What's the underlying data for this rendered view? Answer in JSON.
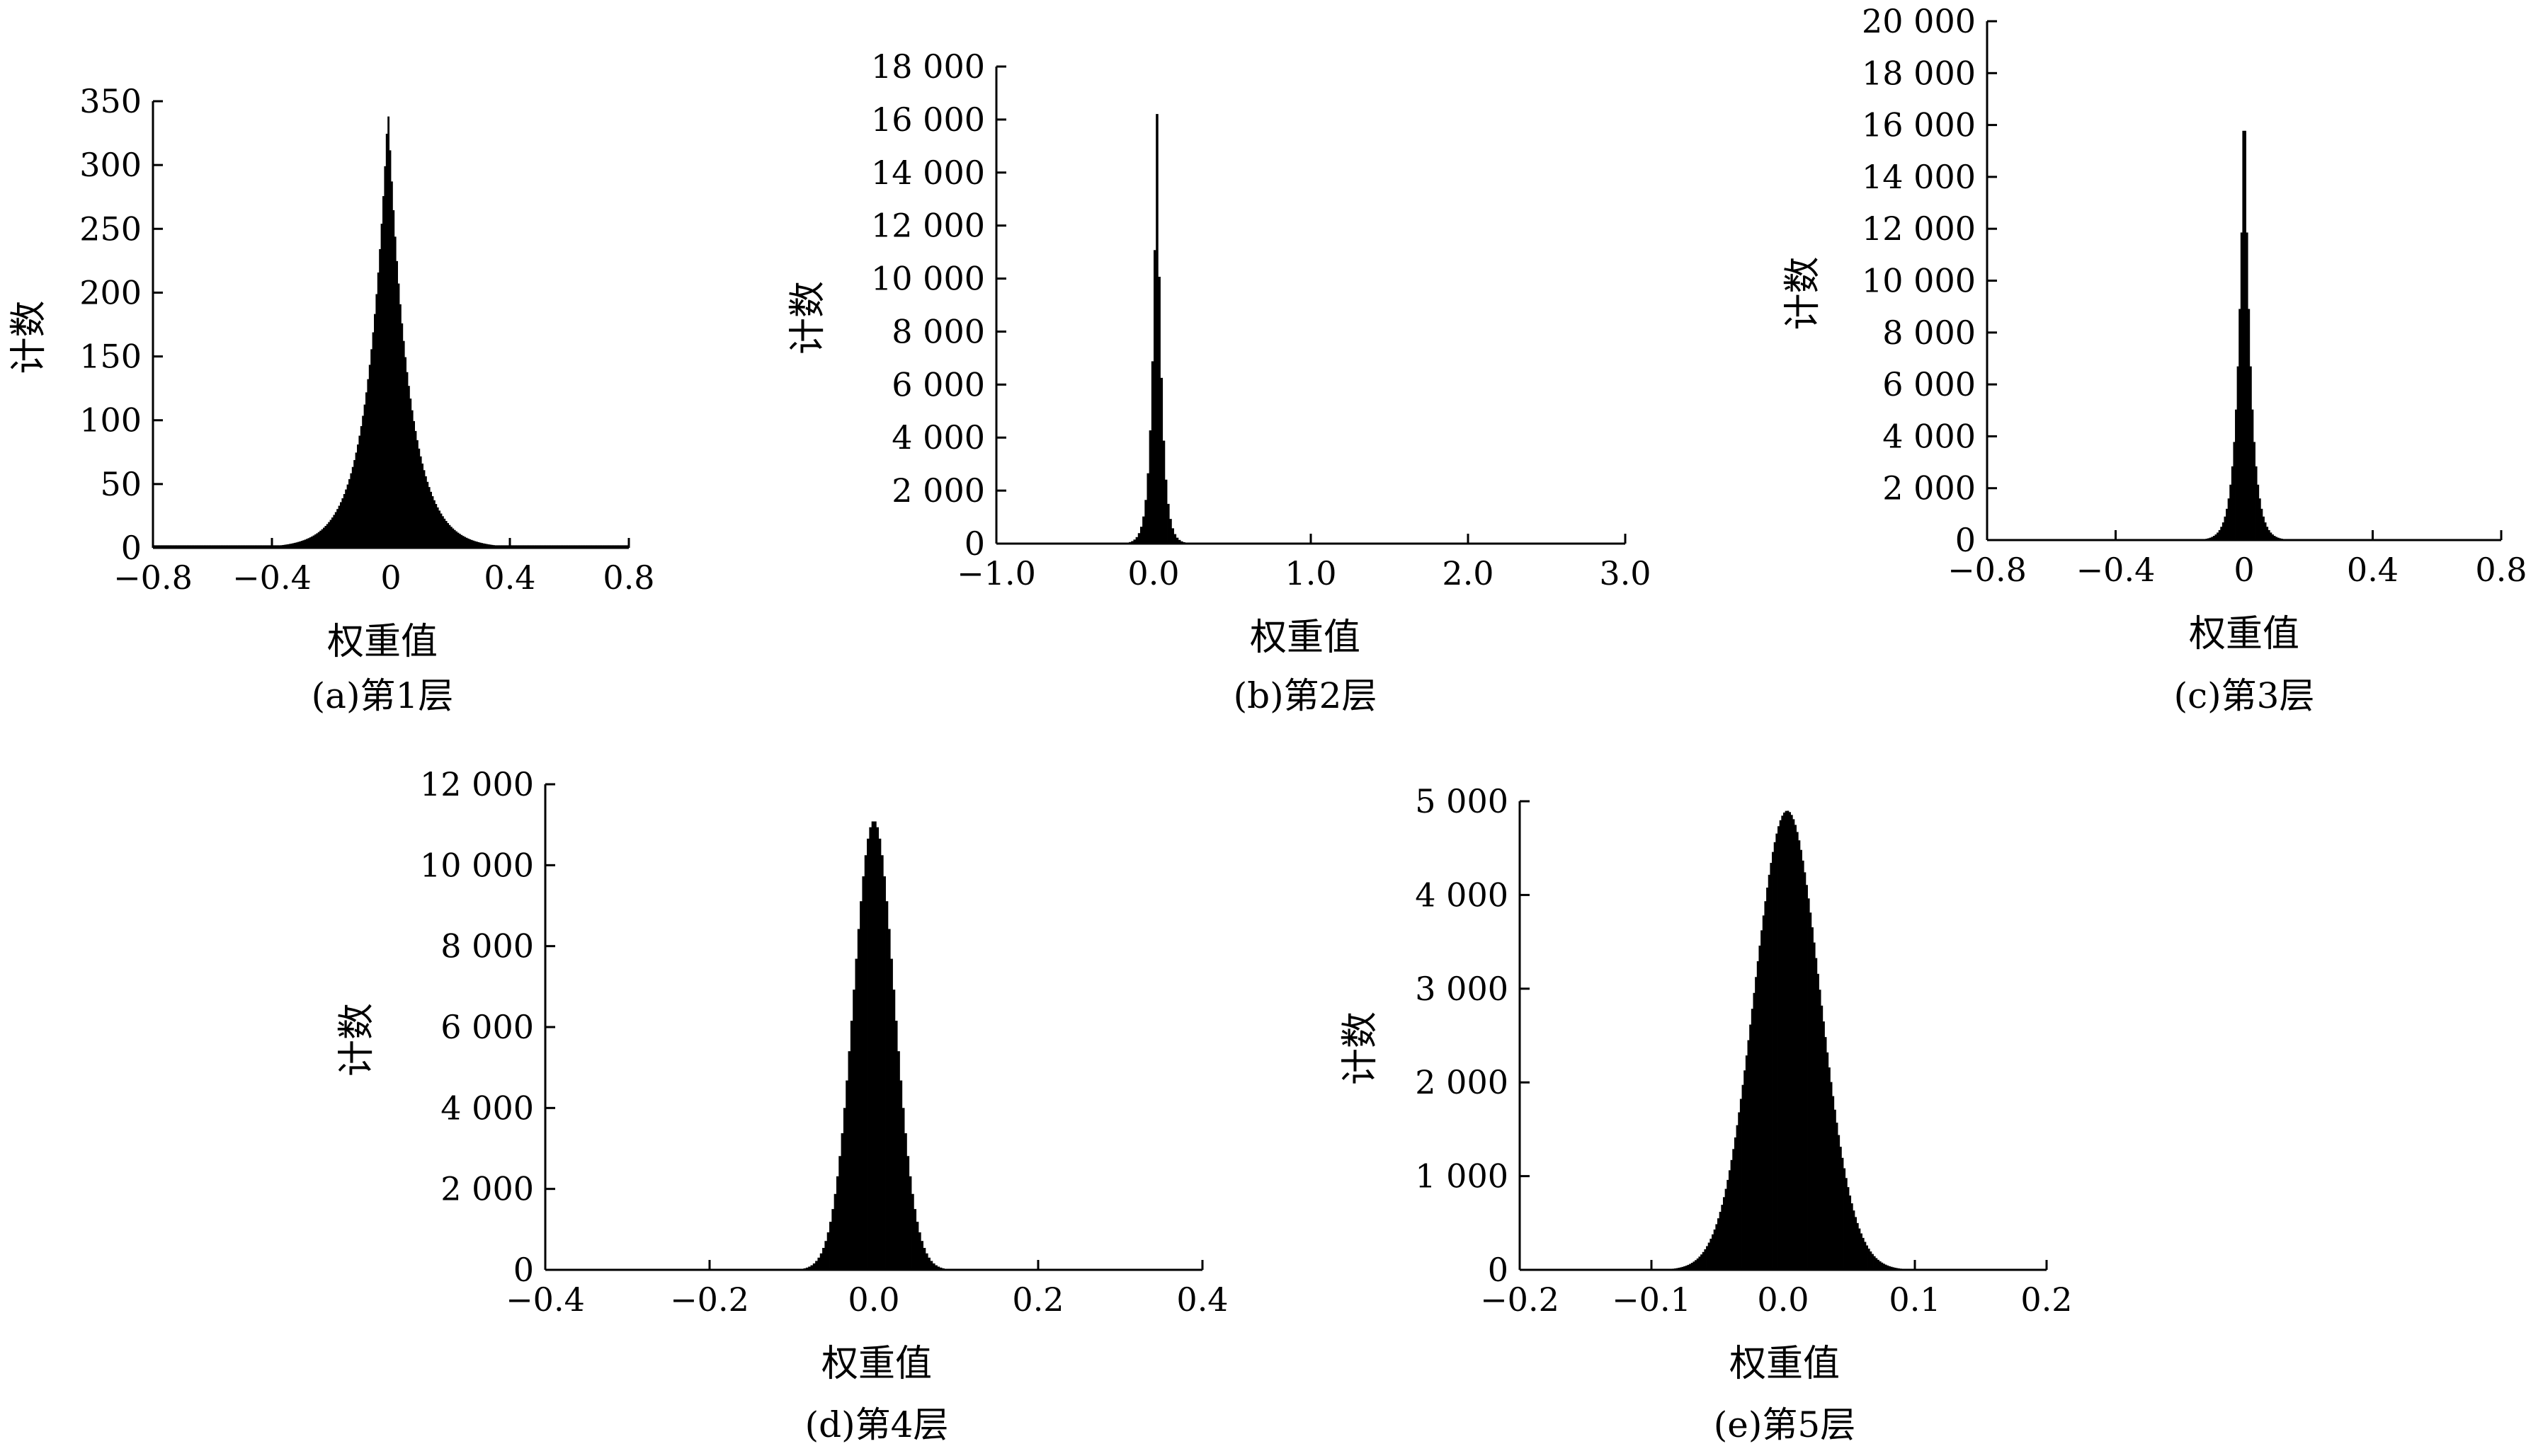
{
  "chart_data": [
    {
      "type": "bar",
      "subtype": "histogram",
      "caption": "(a)第1层",
      "xlabel": "权重值",
      "ylabel": "计数",
      "xlim": [
        -0.8,
        0.8
      ],
      "ylim": [
        0,
        350
      ],
      "xticks": [
        -0.8,
        -0.4,
        0,
        0.4,
        0.8
      ],
      "xtick_labels": [
        "−0.8",
        "−0.4",
        "0",
        "0.4",
        "0.8"
      ],
      "yticks": [
        0,
        50,
        100,
        150,
        200,
        250,
        300,
        350
      ],
      "ytick_labels": [
        "0",
        "50",
        "100",
        "150",
        "200",
        "250",
        "300",
        "350"
      ],
      "distribution": {
        "shape": "laplace",
        "center": -0.01,
        "peak": 345,
        "scale": 0.07,
        "tail_floor": 2
      }
    },
    {
      "type": "bar",
      "subtype": "histogram",
      "caption": "(b)第2层",
      "xlabel": "权重值",
      "ylabel": "计数",
      "xlim": [
        -1.0,
        3.0
      ],
      "ylim": [
        0,
        18000
      ],
      "xticks": [
        -1.0,
        0.0,
        1.0,
        2.0,
        3.0
      ],
      "xtick_labels": [
        "−1.0",
        "0.0",
        "1.0",
        "2.0",
        "3.0"
      ],
      "yticks": [
        0,
        2000,
        4000,
        6000,
        8000,
        10000,
        12000,
        14000,
        16000,
        18000
      ],
      "ytick_labels": [
        "0",
        "2 000",
        "4 000",
        "6 000",
        "8 000",
        "10 000",
        "12 000",
        "14 000",
        "16 000",
        "18 000"
      ],
      "distribution": {
        "shape": "laplace",
        "center": 0.02,
        "peak": 17000,
        "scale": 0.03,
        "tail_floor": 0
      }
    },
    {
      "type": "bar",
      "subtype": "histogram",
      "caption": "(c)第3层",
      "xlabel": "权重值",
      "ylabel": "计数",
      "xlim": [
        -0.8,
        0.8
      ],
      "ylim": [
        0,
        20000
      ],
      "xticks": [
        -0.8,
        -0.4,
        0,
        0.4,
        0.8
      ],
      "xtick_labels": [
        "−0.8",
        "−0.4",
        "0",
        "0.4",
        "0.8"
      ],
      "yticks": [
        0,
        2000,
        4000,
        6000,
        8000,
        10000,
        12000,
        14000,
        16000,
        18000,
        20000
      ],
      "ytick_labels": [
        "0",
        "2 000",
        "4 000",
        "6 000",
        "8 000",
        "10 000",
        "12 000",
        "14 000",
        "16 000",
        "18 000",
        "20 000"
      ],
      "distribution": {
        "shape": "laplace",
        "center": 0.0,
        "peak": 18200,
        "scale": 0.02,
        "tail_floor": 0
      }
    },
    {
      "type": "bar",
      "subtype": "histogram",
      "caption": "(d)第4层",
      "xlabel": "权重值",
      "ylabel": "计数",
      "xlim": [
        -0.4,
        0.4
      ],
      "ylim": [
        0,
        12000
      ],
      "xticks": [
        -0.4,
        -0.2,
        0.0,
        0.2,
        0.4
      ],
      "xtick_labels": [
        "−0.4",
        "−0.2",
        "0.0",
        "0.2",
        "0.4"
      ],
      "yticks": [
        0,
        2000,
        4000,
        6000,
        8000,
        10000,
        12000
      ],
      "ytick_labels": [
        "0",
        "2 000",
        "4 000",
        "6 000",
        "8 000",
        "10 000",
        "12 000"
      ],
      "distribution": {
        "shape": "gaussian",
        "center": 0.0,
        "peak": 11100,
        "scale": 0.025,
        "tail_floor": 0
      }
    },
    {
      "type": "bar",
      "subtype": "histogram",
      "caption": "(e)第5层",
      "xlabel": "权重值",
      "ylabel": "计数",
      "xlim": [
        -0.2,
        0.2
      ],
      "ylim": [
        0,
        5000
      ],
      "xticks": [
        -0.2,
        -0.1,
        0.0,
        0.1,
        0.2
      ],
      "xtick_labels": [
        "−0.2",
        "−0.1",
        "0.0",
        "0.1",
        "0.2"
      ],
      "yticks": [
        0,
        1000,
        2000,
        3000,
        4000,
        5000
      ],
      "ytick_labels": [
        "0",
        "1 000",
        "2 000",
        "3 000",
        "4 000",
        "5 000"
      ],
      "distribution": {
        "shape": "gaussian",
        "center": 0.003,
        "peak": 4900,
        "scale": 0.025,
        "tail_floor": 0
      }
    }
  ]
}
